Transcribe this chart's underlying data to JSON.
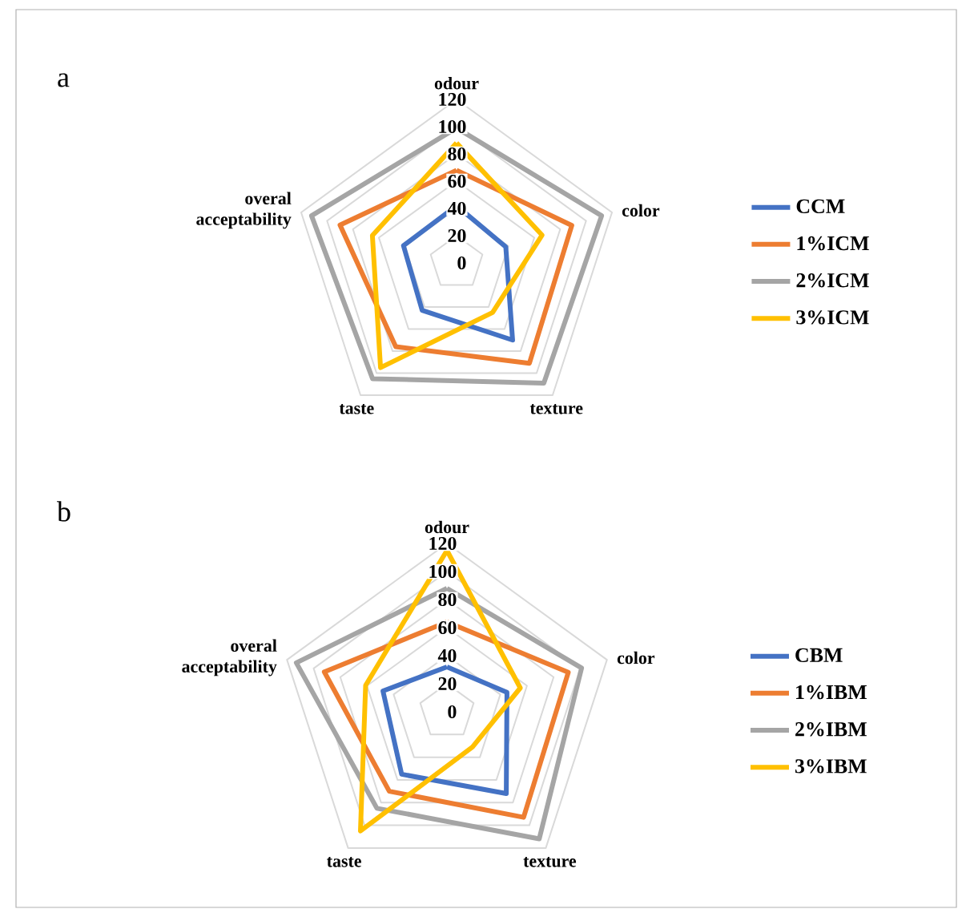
{
  "chart_data": [
    {
      "type": "radar",
      "title": "a",
      "categories": [
        "odour",
        "color",
        "texture",
        "taste",
        "overal acceptability"
      ],
      "ylim": [
        0,
        120
      ],
      "yticks": [
        0,
        20,
        40,
        60,
        80,
        100,
        120
      ],
      "legend": "right",
      "series": [
        {
          "name": "CCM",
          "color": "#4472c4",
          "values": [
            42,
            38,
            70,
            43,
            41
          ]
        },
        {
          "name": "1%ICM",
          "color": "#ed7d31",
          "values": [
            68,
            89,
            91,
            76,
            90
          ]
        },
        {
          "name": "2%ICM",
          "color": "#a5a5a5",
          "values": [
            99,
            112,
            109,
            105,
            112
          ]
        },
        {
          "name": "3%ICM",
          "color": "#ffc000",
          "values": [
            88,
            66,
            45,
            95,
            65
          ]
        }
      ]
    },
    {
      "type": "radar",
      "title": "b",
      "categories": [
        "odour",
        "color",
        "texture",
        "taste",
        "overal acceptability"
      ],
      "ylim": [
        0,
        120
      ],
      "yticks": [
        0,
        20,
        40,
        60,
        80,
        100,
        120
      ],
      "legend": "right",
      "series": [
        {
          "name": "CBM",
          "color": "#4472c4",
          "values": [
            32,
            45,
            72,
            55,
            48
          ]
        },
        {
          "name": "1%IBM",
          "color": "#ed7d31",
          "values": [
            64,
            91,
            93,
            70,
            92
          ]
        },
        {
          "name": "2%IBM",
          "color": "#a5a5a5",
          "values": [
            88,
            101,
            112,
            85,
            113
          ]
        },
        {
          "name": "3%IBM",
          "color": "#ffc000",
          "values": [
            115,
            55,
            31,
            105,
            61
          ]
        }
      ]
    }
  ]
}
